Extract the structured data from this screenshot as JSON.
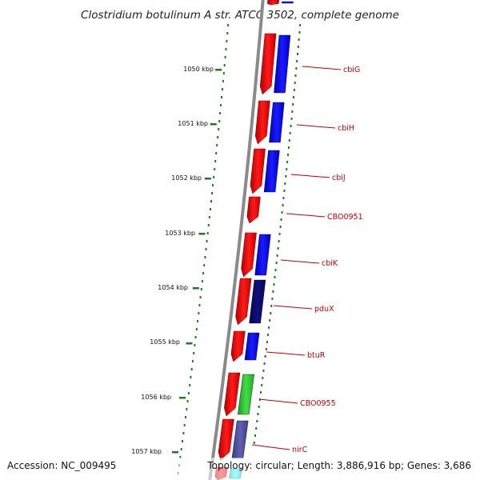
{
  "title": "Clostridium botulinum A str. ATCC 3502, complete genome",
  "footer": {
    "accession": "Accession: NC_009495",
    "topology": "Topology: circular; Length: 3,886,916 bp; Genes: 3,686"
  },
  "ticks": [
    "1050 kbp",
    "1051 kbp",
    "1052 kbp",
    "1053 kbp",
    "1054 kbp",
    "1055 kbp",
    "1056 kbp",
    "1057 kbp"
  ],
  "genes": [
    {
      "label": "cbiG"
    },
    {
      "label": "cbiH"
    },
    {
      "label": "cbiJ"
    },
    {
      "label": "CBO0951"
    },
    {
      "label": "cbiK"
    },
    {
      "label": "pduX"
    },
    {
      "label": "btuR"
    },
    {
      "label": "CBO0955"
    },
    {
      "label": "nirC"
    }
  ],
  "colors": {
    "backbone": "#8a8a8a",
    "tick": "#1f7a1f",
    "gene_label": "#c00000",
    "forward_cds": "#ee0000",
    "cog_blue": "#0000ee",
    "cog_navy": "#0a0a6e",
    "cog_green": "#33cc33",
    "cog_slate": "#5050a0",
    "cog_cyan": "#00e0e0"
  }
}
